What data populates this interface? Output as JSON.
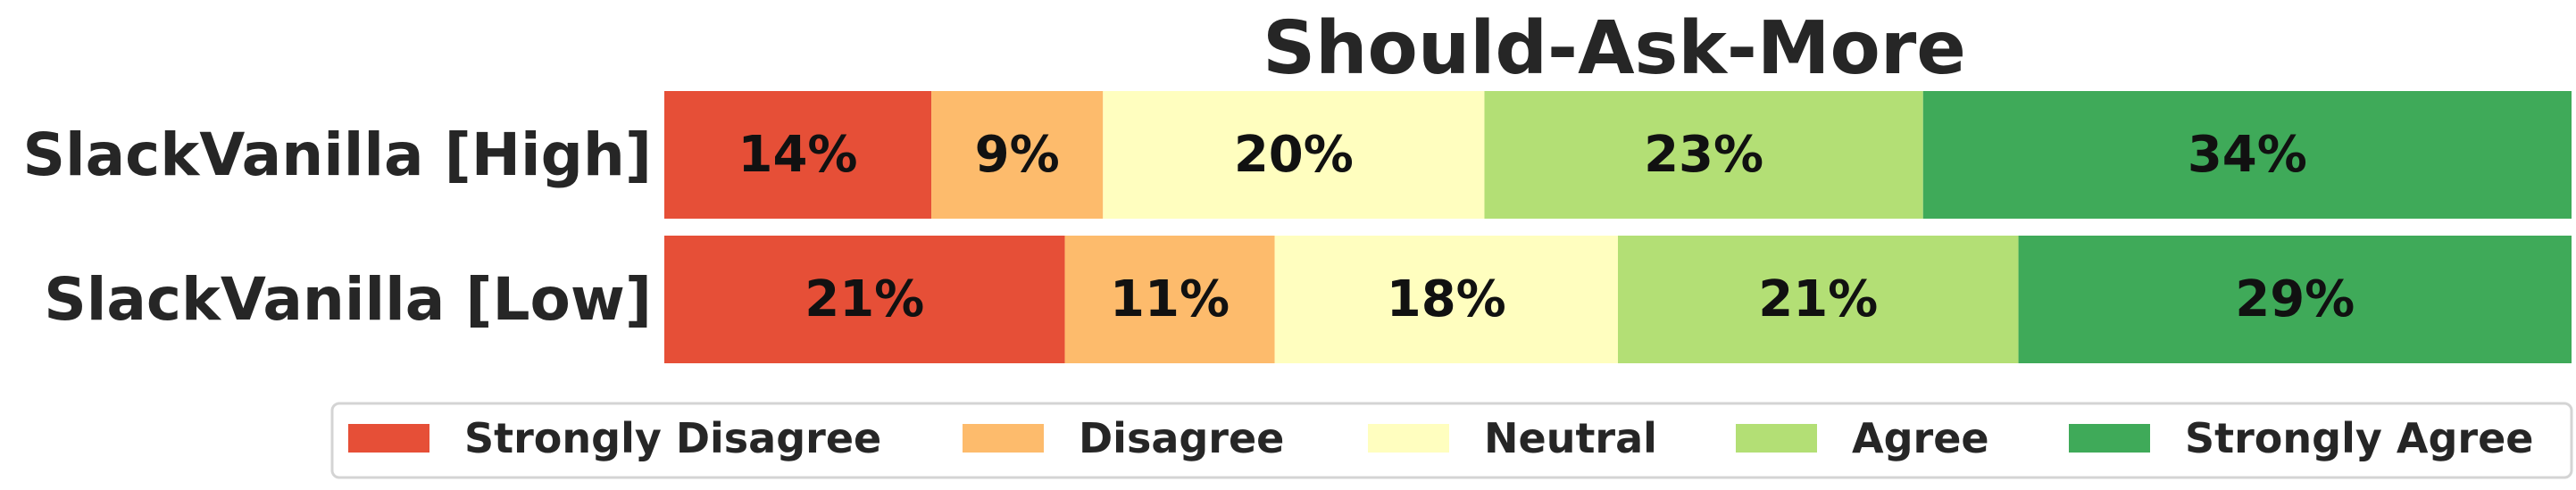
{
  "chart_data": {
    "type": "bar",
    "orientation": "horizontal",
    "stacked": true,
    "title": "Should-Ask-More",
    "categories": [
      "SlackVanilla [High]",
      "SlackVanilla [Low]"
    ],
    "series": [
      {
        "name": "Strongly Disagree",
        "color": "#e64f37",
        "values": [
          14,
          21
        ],
        "labels": [
          "14%",
          "21%"
        ]
      },
      {
        "name": "Disagree",
        "color": "#fdbb6c",
        "values": [
          9,
          11
        ],
        "labels": [
          "9%",
          "11%"
        ]
      },
      {
        "name": "Neutral",
        "color": "#fffebf",
        "values": [
          20,
          18
        ],
        "labels": [
          "20%",
          "18%"
        ]
      },
      {
        "name": "Agree",
        "color": "#b3df75",
        "values": [
          23,
          21
        ],
        "labels": [
          "23%",
          "21%"
        ]
      },
      {
        "name": "Strongly Agree",
        "color": "#3faa59",
        "values": [
          34,
          29
        ],
        "labels": [
          "34%",
          "29%"
        ]
      }
    ],
    "xlim": [
      0,
      100
    ],
    "grid": false,
    "legend_position": "bottom"
  }
}
